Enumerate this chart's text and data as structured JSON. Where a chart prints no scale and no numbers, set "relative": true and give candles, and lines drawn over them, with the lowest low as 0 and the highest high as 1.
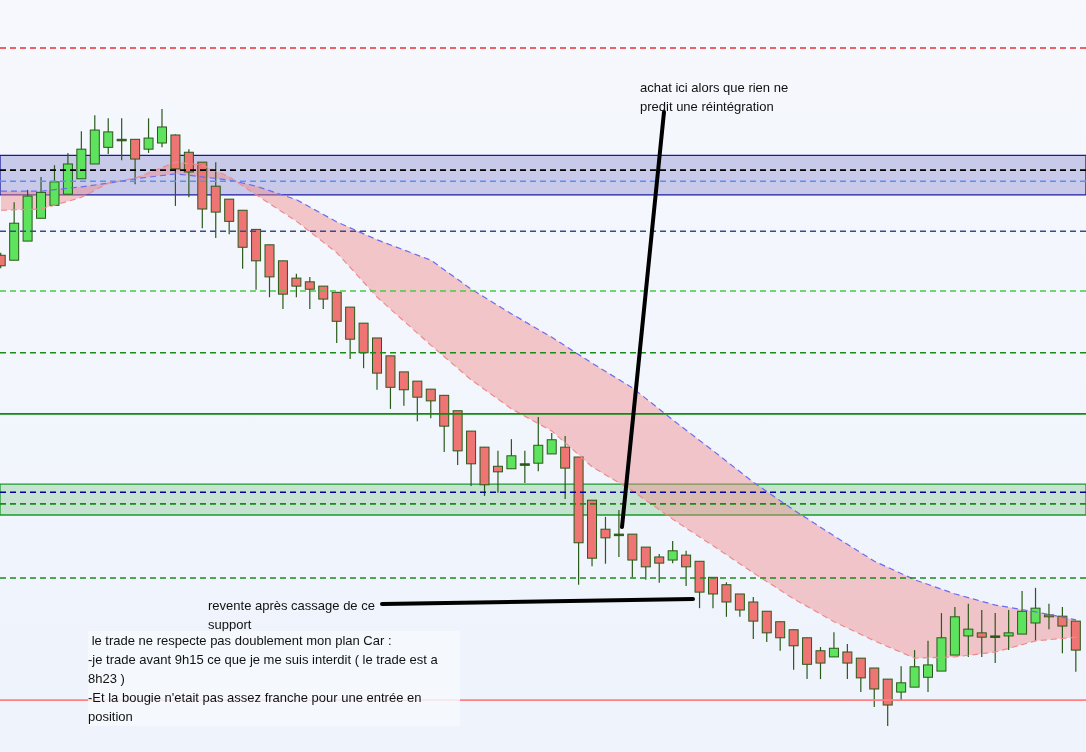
{
  "chart_data": {
    "type": "candlestick",
    "relative": true,
    "tick_labels": false,
    "legend": false,
    "categories": [
      null,
      null,
      null,
      null,
      null,
      null,
      null,
      null,
      null,
      null,
      null,
      null,
      null,
      null,
      null,
      null,
      null,
      null,
      null,
      null,
      null,
      null,
      null,
      null,
      null,
      null,
      null,
      null,
      null,
      null,
      null,
      null,
      null,
      null,
      null,
      null,
      null,
      null,
      null,
      null,
      null,
      null,
      null,
      null,
      null,
      null,
      null,
      null,
      null,
      null,
      null,
      null,
      null,
      null,
      null,
      null,
      null,
      null,
      null,
      null,
      null,
      null,
      null,
      null,
      null,
      null,
      null,
      null,
      null,
      null,
      null,
      null,
      null,
      null,
      null,
      null,
      null,
      null,
      null,
      null,
      null
    ],
    "ohlc": [
      [
        0.763,
        0.767,
        0.742,
        0.746
      ],
      [
        0.755,
        0.849,
        0.755,
        0.815
      ],
      [
        0.786,
        0.869,
        0.786,
        0.859
      ],
      [
        0.823,
        0.89,
        0.823,
        0.865
      ],
      [
        0.844,
        0.909,
        0.844,
        0.882
      ],
      [
        0.862,
        0.929,
        0.862,
        0.911
      ],
      [
        0.887,
        0.964,
        0.887,
        0.935
      ],
      [
        0.911,
        0.99,
        0.911,
        0.966
      ],
      [
        0.938,
        0.985,
        0.927,
        0.963
      ],
      [
        0.951,
        0.985,
        0.917,
        0.951
      ],
      [
        0.951,
        0.951,
        0.878,
        0.919
      ],
      [
        0.935,
        0.985,
        0.929,
        0.953
      ],
      [
        0.945,
        1,
        0.938,
        0.971
      ],
      [
        0.958,
        0.959,
        0.843,
        0.903
      ],
      [
        0.93,
        0.935,
        0.857,
        0.898
      ],
      [
        0.914,
        0.914,
        0.807,
        0.838
      ],
      [
        0.875,
        0.914,
        0.791,
        0.833
      ],
      [
        0.854,
        0.854,
        0.797,
        0.818
      ],
      [
        0.836,
        0.836,
        0.741,
        0.776
      ],
      [
        0.805,
        0.805,
        0.707,
        0.754
      ],
      [
        0.78,
        0.78,
        0.695,
        0.728
      ],
      [
        0.754,
        0.754,
        0.676,
        0.7
      ],
      [
        0.726,
        0.733,
        0.695,
        0.713
      ],
      [
        0.72,
        0.728,
        0.676,
        0.708
      ],
      [
        0.713,
        0.713,
        0.676,
        0.692
      ],
      [
        0.703,
        0.703,
        0.621,
        0.656
      ],
      [
        0.679,
        0.679,
        0.595,
        0.627
      ],
      [
        0.653,
        0.653,
        0.58,
        0.605
      ],
      [
        0.629,
        0.629,
        0.545,
        0.572
      ],
      [
        0.6,
        0.6,
        0.514,
        0.549
      ],
      [
        0.574,
        0.574,
        0.519,
        0.545
      ],
      [
        0.559,
        0.559,
        0.494,
        0.533
      ],
      [
        0.546,
        0.546,
        0.499,
        0.527
      ],
      [
        0.536,
        0.536,
        0.444,
        0.486
      ],
      [
        0.511,
        0.511,
        0.423,
        0.446
      ],
      [
        0.478,
        0.478,
        0.389,
        0.425
      ],
      [
        0.452,
        0.452,
        0.373,
        0.391
      ],
      [
        0.421,
        0.446,
        0.378,
        0.412
      ],
      [
        0.417,
        0.465,
        0.417,
        0.438
      ],
      [
        0.425,
        0.446,
        0.394,
        0.425
      ],
      [
        0.426,
        0.501,
        0.413,
        0.455
      ],
      [
        0.441,
        0.475,
        0.441,
        0.464
      ],
      [
        0.452,
        0.47,
        0.368,
        0.418
      ],
      [
        0.436,
        0.436,
        0.229,
        0.297
      ],
      [
        0.366,
        0.366,
        0.259,
        0.272
      ],
      [
        0.319,
        0.339,
        0.263,
        0.305
      ],
      [
        0.311,
        0.35,
        0.274,
        0.311
      ],
      [
        0.311,
        0.311,
        0.241,
        0.269
      ],
      [
        0.29,
        0.29,
        0.237,
        0.258
      ],
      [
        0.274,
        0.279,
        0.232,
        0.264
      ],
      [
        0.269,
        0.3,
        0.264,
        0.284
      ],
      [
        0.277,
        0.284,
        0.227,
        0.258
      ],
      [
        0.267,
        0.267,
        0.191,
        0.217
      ],
      [
        0.241,
        0.241,
        0.191,
        0.214
      ],
      [
        0.229,
        0.233,
        0.177,
        0.201
      ],
      [
        0.214,
        0.214,
        0.177,
        0.188
      ],
      [
        0.201,
        0.209,
        0.141,
        0.17
      ],
      [
        0.186,
        0.186,
        0.136,
        0.151
      ],
      [
        0.169,
        0.169,
        0.122,
        0.143
      ],
      [
        0.156,
        0.157,
        0.091,
        0.13
      ],
      [
        0.143,
        0.143,
        0.076,
        0.1
      ],
      [
        0.122,
        0.128,
        0.076,
        0.102
      ],
      [
        0.112,
        0.152,
        0.112,
        0.126
      ],
      [
        0.12,
        0.133,
        0.076,
        0.102
      ],
      [
        0.11,
        0.11,
        0.055,
        0.078
      ],
      [
        0.094,
        0.094,
        0.031,
        0.06
      ],
      [
        0.076,
        0.076,
        0,
        0.034
      ],
      [
        0.055,
        0.097,
        0.042,
        0.07
      ],
      [
        0.063,
        0.123,
        0.063,
        0.096
      ],
      [
        0.079,
        0.138,
        0.055,
        0.099
      ],
      [
        0.089,
        0.183,
        0.089,
        0.143
      ],
      [
        0.115,
        0.193,
        0.115,
        0.177
      ],
      [
        0.146,
        0.198,
        0.112,
        0.157
      ],
      [
        0.151,
        0.188,
        0.112,
        0.144
      ],
      [
        0.146,
        0.183,
        0.102,
        0.146
      ],
      [
        0.146,
        0.188,
        0.123,
        0.151
      ],
      [
        0.149,
        0.219,
        0.149,
        0.186
      ],
      [
        0.167,
        0.224,
        0.138,
        0.191
      ],
      [
        0.18,
        0.198,
        0.157,
        0.177
      ],
      [
        0.178,
        0.193,
        0.118,
        0.162
      ],
      [
        0.17,
        0.17,
        0.088,
        0.123
      ]
    ],
    "series": [
      {
        "type": "line",
        "color": "#6b6bf2",
        "line_style": "dashed",
        "values": [
          0.867,
          null,
          null,
          0.867,
          null,
          null,
          0.874,
          null,
          0.88,
          null,
          0.887,
          null,
          null,
          0.895,
          null,
          0.89,
          null,
          0.885,
          null,
          0.875,
          null,
          null,
          0.853,
          null,
          null,
          0.817,
          null,
          null,
          0.788,
          null,
          null,
          null,
          0.755,
          null,
          null,
          0.708,
          null,
          null,
          0.668,
          null,
          null,
          0.63,
          null,
          null,
          0.588,
          null,
          null,
          0.548,
          null,
          null,
          0.496,
          null,
          null,
          0.446,
          null,
          null,
          0.395,
          null,
          null,
          0.35,
          null,
          null,
          0.308,
          null,
          null,
          0.267,
          null,
          null,
          0.237,
          null,
          null,
          0.214,
          null,
          null,
          0.196,
          null,
          null,
          0.185,
          null,
          null,
          0.172
        ]
      },
      {
        "type": "line",
        "color": "#f08a8a",
        "line_style": "dashed",
        "values": [
          0.836,
          null,
          null,
          0.838,
          null,
          null,
          0.857,
          null,
          0.88,
          null,
          0.888,
          null,
          null,
          0.914,
          null,
          0.909,
          null,
          0.89,
          null,
          0.861,
          null,
          null,
          0.818,
          null,
          null,
          0.767,
          null,
          null,
          0.695,
          null,
          null,
          null,
          0.617,
          null,
          null,
          0.561,
          null,
          null,
          0.514,
          null,
          null,
          0.478,
          null,
          null,
          0.42,
          null,
          null,
          0.381,
          null,
          null,
          0.335,
          null,
          null,
          0.292,
          null,
          null,
          0.248,
          null,
          null,
          0.206,
          null,
          null,
          0.169,
          null,
          null,
          0.138,
          null,
          null,
          0.11,
          null,
          null,
          0.112,
          null,
          null,
          0.12,
          null,
          null,
          0.138,
          null,
          null,
          0.144
        ]
      }
    ],
    "bands": [
      {
        "axis": "y",
        "from": 0.861,
        "to": 0.925,
        "color": "#1a1aa0"
      },
      {
        "axis": "y",
        "from": 0.342,
        "to": 0.392,
        "color": "#1a9a2a"
      }
    ],
    "ref_lines": [
      {
        "axis": "y",
        "value": 1.099,
        "color": "#e83030",
        "line_style": "dashed"
      },
      {
        "axis": "y",
        "value": 0.901,
        "color": "#000000",
        "line_style": "dashed"
      },
      {
        "axis": "y",
        "value": 0.883,
        "color": "#5b8ff0",
        "line_style": "dashed"
      },
      {
        "axis": "y",
        "value": 0.802,
        "color": "#3a4a8a",
        "line_style": "dashed"
      },
      {
        "axis": "y",
        "value": 0.705,
        "color": "#44cc44",
        "line_style": "dashed"
      },
      {
        "axis": "y",
        "value": 0.605,
        "color": "#1a8a1a",
        "line_style": "dashed"
      },
      {
        "axis": "y",
        "value": 0.506,
        "color": "#118811",
        "line_style": "solid"
      },
      {
        "axis": "y",
        "value": 0.379,
        "color": "#000099",
        "line_style": "dashed"
      },
      {
        "axis": "y",
        "value": 0.36,
        "color": "#1a8a1a",
        "line_style": "dashed"
      },
      {
        "axis": "y",
        "value": 0.24,
        "color": "#1a8a1a",
        "line_style": "dashed"
      },
      {
        "axis": "y",
        "value": 0.042,
        "color": "#ff8080",
        "line_style": "solid"
      }
    ],
    "annotations": [
      "achat ici alors que rien ne predit une réintégration",
      "revente après cassage de ce support",
      " le trade ne respecte pas doublement mon plan Car :",
      "-je trade avant 9h15 ce que je me suis interdit ( le trade est a 8h23 )",
      "-Et la bougie n'etait pas assez franche pour une entrée en position"
    ]
  }
}
